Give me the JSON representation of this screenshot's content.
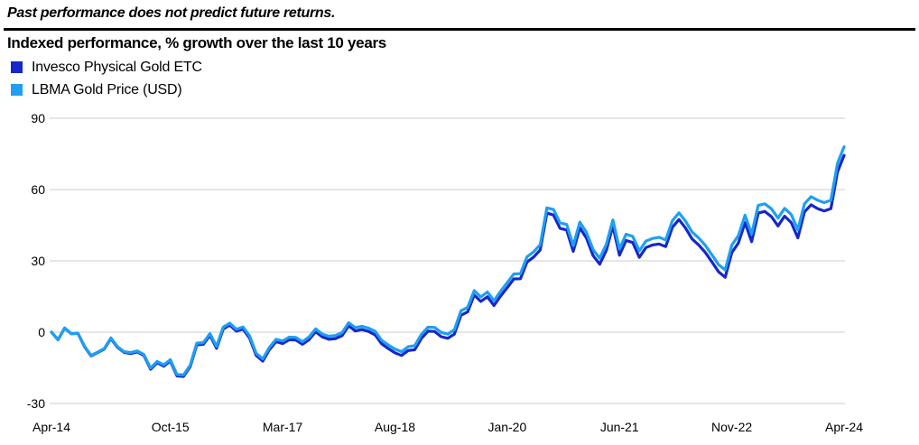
{
  "disclaimer": "Past performance does not predict future returns.",
  "chart_title": "Indexed performance, % growth over the last 10 years",
  "chart_data": {
    "type": "line",
    "title": "Indexed performance, % growth over the last 10 years",
    "legend_position": "top-left",
    "grid": "horizontal",
    "grid_color": "#d6d6d6",
    "x_axis": {
      "interval": "monthly",
      "start": "Apr-14",
      "end": "Apr-24",
      "tick_labels": [
        "Apr-14",
        "Oct-15",
        "Mar-17",
        "Aug-18",
        "Jan-20",
        "Jun-21",
        "Nov-22",
        "Apr-24"
      ],
      "tick_month_indices": [
        0,
        18,
        35,
        52,
        69,
        86,
        103,
        120
      ]
    },
    "y_axis": {
      "ticks": [
        90,
        60,
        30,
        0,
        -30
      ],
      "ylim": [
        -30,
        90
      ],
      "unit": "% growth"
    },
    "series": [
      {
        "name": "Invesco Physical Gold ETC",
        "color": "#1527cc",
        "values": [
          0.0,
          -3.2,
          1.7,
          -0.7,
          -0.5,
          -6.1,
          -10.0,
          -8.6,
          -7.1,
          -2.7,
          -6.4,
          -8.5,
          -9.0,
          -8.3,
          -9.8,
          -15.6,
          -12.8,
          -14.3,
          -12.1,
          -18.4,
          -18.6,
          -14.5,
          -5.3,
          -5.1,
          -1.3,
          -6.8,
          1.3,
          3.0,
          0.4,
          1.3,
          -2.5,
          -9.8,
          -12.2,
          -7.4,
          -4.0,
          -4.8,
          -3.2,
          -3.3,
          -5.1,
          -3.2,
          0.2,
          -2.0,
          -3.0,
          -2.7,
          -1.5,
          2.7,
          0.5,
          1.1,
          0.3,
          -1.1,
          -4.9,
          -6.9,
          -8.7,
          -9.8,
          -7.7,
          -7.4,
          -2.7,
          0.4,
          0.3,
          -1.9,
          -2.6,
          -0.8,
          7.1,
          8.5,
          15.6,
          12.9,
          14.9,
          11.2,
          15.2,
          18.7,
          22.4,
          22.5,
          29.5,
          31.6,
          34.6,
          50.1,
          49.3,
          43.7,
          43.0,
          34.0,
          43.9,
          39.6,
          32.2,
          28.6,
          34.4,
          44.7,
          32.4,
          38.6,
          37.7,
          31.5,
          35.6,
          36.7,
          37.1,
          36.0,
          44.1,
          47.4,
          43.8,
          39.2,
          36.7,
          33.5,
          29.5,
          25.4,
          23.1,
          33.5,
          37.5,
          46.1,
          38.1,
          50.1,
          50.8,
          48.6,
          44.7,
          48.8,
          46.1,
          39.7,
          50.6,
          53.6,
          52.0,
          51.0,
          52.0,
          67.4,
          74.4
        ]
      },
      {
        "name": "LBMA Gold Price (USD)",
        "color": "#1e9ff2",
        "values": [
          0.0,
          -3.2,
          1.8,
          -0.6,
          -0.4,
          -5.9,
          -9.8,
          -8.4,
          -6.9,
          -2.4,
          -6.1,
          -8.2,
          -8.6,
          -7.9,
          -9.4,
          -15.1,
          -12.3,
          -13.8,
          -11.6,
          -17.8,
          -18.0,
          -13.9,
          -4.6,
          -4.4,
          -0.6,
          -6.0,
          2.1,
          3.8,
          1.2,
          2.2,
          -1.6,
          -8.9,
          -11.2,
          -6.4,
          -3.0,
          -3.7,
          -2.1,
          -2.2,
          -4.0,
          -2.0,
          1.4,
          -0.8,
          -1.7,
          -1.4,
          -0.2,
          4.0,
          1.9,
          2.5,
          1.7,
          0.4,
          -3.4,
          -5.4,
          -7.1,
          -8.2,
          -6.1,
          -5.7,
          -1.0,
          2.1,
          2.0,
          -0.1,
          -0.8,
          1.0,
          9.0,
          10.4,
          17.5,
          14.8,
          16.9,
          13.2,
          17.2,
          20.8,
          24.5,
          24.6,
          31.7,
          33.8,
          36.8,
          52.3,
          51.6,
          46.0,
          45.3,
          36.4,
          46.3,
          42.0,
          34.7,
          31.1,
          36.9,
          47.2,
          35.0,
          41.2,
          40.3,
          34.2,
          38.3,
          39.4,
          39.9,
          38.8,
          46.9,
          50.2,
          46.7,
          42.1,
          39.6,
          36.5,
          32.5,
          28.4,
          26.2,
          36.6,
          40.6,
          49.2,
          41.3,
          53.3,
          54.0,
          51.9,
          48.0,
          52.1,
          49.5,
          43.1,
          54.0,
          57.0,
          55.5,
          54.5,
          55.5,
          71.0,
          78.0
        ]
      }
    ]
  }
}
